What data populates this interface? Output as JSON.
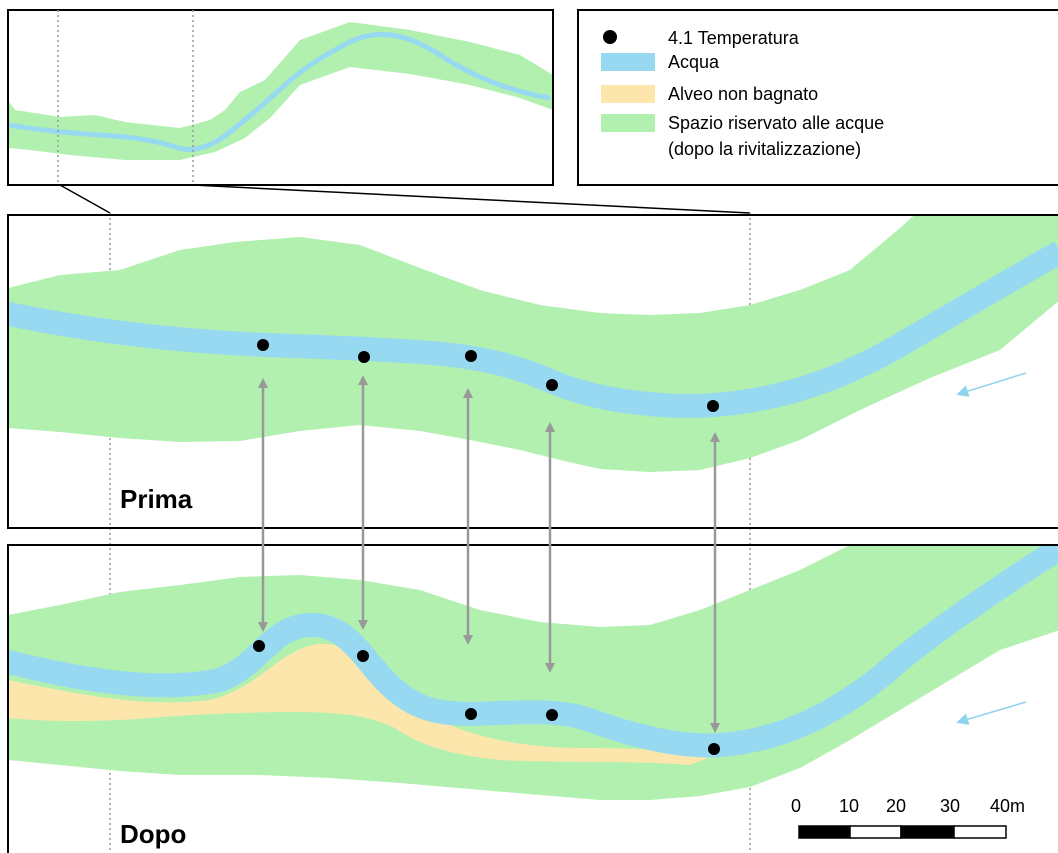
{
  "colors": {
    "water": "#97d9f0",
    "dry_bed": "#fde6ab",
    "reserved_space": "#b2f0b0",
    "point": "#000000",
    "link_arrow": "#999999",
    "flow_arrow": "#8fd3ef",
    "frame": "#000000",
    "guide": "#999999"
  },
  "legend": {
    "items": [
      {
        "symbol": "point-icon",
        "label": "4.1 Temperatura"
      },
      {
        "symbol": "water-swatch",
        "label": "Acqua"
      },
      {
        "symbol": "dry-bed-swatch",
        "label": "Alveo non bagnato"
      },
      {
        "symbol": "reserved-space-swatch",
        "label": "Spazio riservato alle acque"
      }
    ],
    "note": "(dopo la rivitalizzazione)"
  },
  "panels": {
    "before_label": "Prima",
    "after_label": "Dopo"
  },
  "scale_bar": {
    "labels": [
      "0",
      "10",
      "20",
      "30",
      "40m"
    ]
  },
  "measurement_points": {
    "before_count": 5,
    "after_count": 5
  }
}
